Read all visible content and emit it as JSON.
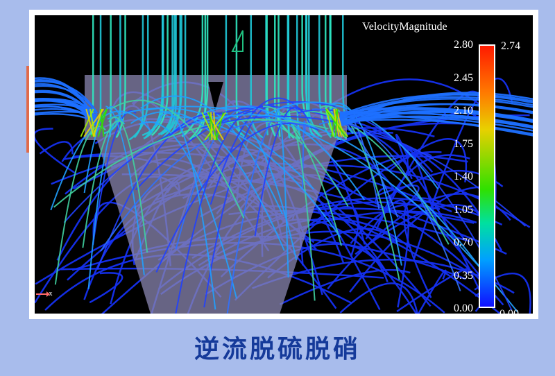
{
  "legend": {
    "title": "VelocityMagnitude",
    "ticks": [
      "2.80",
      "2.45",
      "2.10",
      "1.75",
      "1.40",
      "1.05",
      "0.70",
      "0.35",
      "0.00"
    ],
    "range_max_label": "2.74",
    "range_min_label": "0.00",
    "colormap": [
      "#1010ff",
      "#00a0ff",
      "#00e0a0",
      "#30e000",
      "#e8d000",
      "#ff7a00",
      "#ff1a00"
    ]
  },
  "axis_label": "x",
  "caption": "逆流脱硫脱硝"
}
